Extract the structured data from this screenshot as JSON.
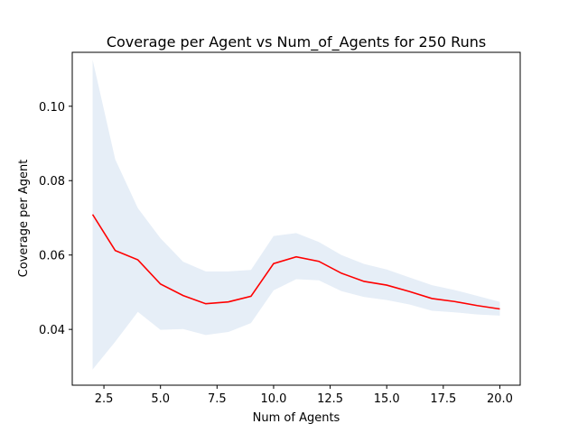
{
  "chart_data": {
    "type": "line",
    "title": "Coverage per Agent vs Num_of_Agents for 250 Runs",
    "xlabel": "Num of Agents",
    "ylabel": "Coverage per Agent",
    "xlim": [
      1.1,
      20.9
    ],
    "ylim": [
      0.025,
      0.1145
    ],
    "x_ticks": [
      2.5,
      5.0,
      7.5,
      10.0,
      12.5,
      15.0,
      17.5,
      20.0
    ],
    "x_tick_labels": [
      "2.5",
      "5.0",
      "7.5",
      "10.0",
      "12.5",
      "15.0",
      "17.5",
      "20.0"
    ],
    "y_ticks": [
      0.04,
      0.06,
      0.08,
      0.1
    ],
    "y_tick_labels": [
      "0.04",
      "0.06",
      "0.08",
      "0.10"
    ],
    "grid": false,
    "legend": "none",
    "x": [
      2,
      3,
      4,
      5,
      6,
      7,
      8,
      9,
      10,
      11,
      12,
      13,
      14,
      15,
      16,
      17,
      18,
      19,
      20
    ],
    "series": [
      {
        "color": "#ff0000",
        "values": [
          0.0709,
          0.0612,
          0.0587,
          0.0522,
          0.0491,
          0.0469,
          0.0474,
          0.0489,
          0.0577,
          0.0595,
          0.0583,
          0.0551,
          0.0529,
          0.0519,
          0.0502,
          0.0483,
          0.0475,
          0.0464,
          0.0455
        ]
      }
    ],
    "band": {
      "color": "#e6eef7",
      "upper": [
        0.1125,
        0.0857,
        0.0726,
        0.0645,
        0.0582,
        0.0556,
        0.0556,
        0.056,
        0.0651,
        0.0659,
        0.0635,
        0.06,
        0.0576,
        0.0561,
        0.054,
        0.0519,
        0.0506,
        0.049,
        0.0474
      ],
      "lower": [
        0.0292,
        0.0367,
        0.0447,
        0.0399,
        0.0401,
        0.0385,
        0.0393,
        0.0417,
        0.0505,
        0.0535,
        0.0532,
        0.0503,
        0.0487,
        0.0479,
        0.0467,
        0.045,
        0.0446,
        0.044,
        0.0437
      ]
    }
  }
}
